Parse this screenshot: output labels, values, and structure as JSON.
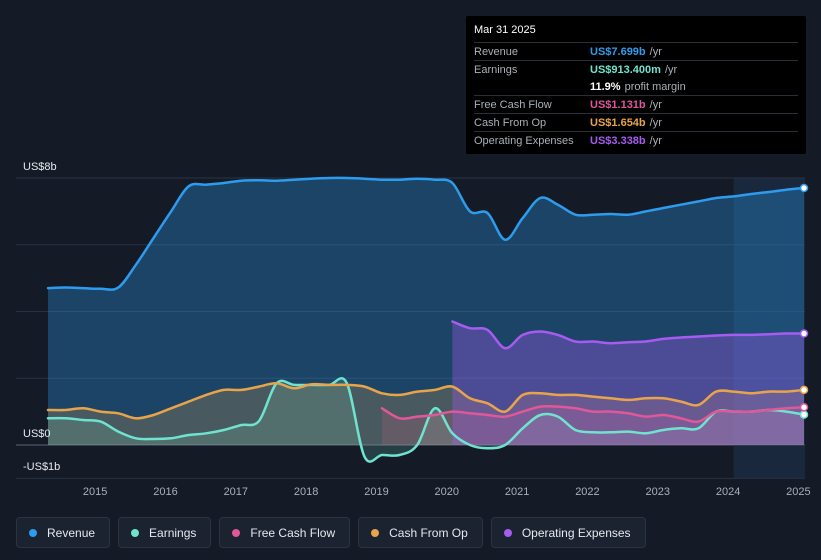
{
  "tooltip": {
    "date": "Mar 31 2025",
    "rows": [
      {
        "label": "Revenue",
        "value": "US$7.699b",
        "unit": "/yr",
        "color": "#2d9cee"
      },
      {
        "label": "Earnings",
        "value": "US$913.400m",
        "unit": "/yr",
        "color": "#6fe3cf"
      },
      {
        "label": "",
        "value": "11.9%",
        "unit": "profit margin",
        "color": "#ffffff"
      },
      {
        "label": "Free Cash Flow",
        "value": "US$1.131b",
        "unit": "/yr",
        "color": "#e0579a"
      },
      {
        "label": "Cash From Op",
        "value": "US$1.654b",
        "unit": "/yr",
        "color": "#e7a44a"
      },
      {
        "label": "Operating Expenses",
        "value": "US$3.338b",
        "unit": "/yr",
        "color": "#a75bf0"
      }
    ]
  },
  "legend": [
    {
      "label": "Revenue",
      "color": "#2d9cee"
    },
    {
      "label": "Earnings",
      "color": "#6fe3cf"
    },
    {
      "label": "Free Cash Flow",
      "color": "#e0579a"
    },
    {
      "label": "Cash From Op",
      "color": "#e7a44a"
    },
    {
      "label": "Operating Expenses",
      "color": "#a75bf0"
    }
  ],
  "chart_data": {
    "type": "area",
    "title": "",
    "xlabel": "",
    "ylabel": "",
    "ylim": [
      -1,
      8
    ],
    "xlim": [
      2014.5,
      2025.25
    ],
    "y_tick_labels": [
      {
        "value": 8,
        "label": "US$8b"
      },
      {
        "value": 0,
        "label": "US$0"
      },
      {
        "value": -1,
        "label": "-US$1b"
      }
    ],
    "x_ticks": [
      {
        "value": 2015,
        "label": "2015"
      },
      {
        "value": 2016,
        "label": "2016"
      },
      {
        "value": 2017,
        "label": "2017"
      },
      {
        "value": 2018,
        "label": "2018"
      },
      {
        "value": 2019,
        "label": "2019"
      },
      {
        "value": 2020,
        "label": "2020"
      },
      {
        "value": 2021,
        "label": "2021"
      },
      {
        "value": 2022,
        "label": "2022"
      },
      {
        "value": 2023,
        "label": "2023"
      },
      {
        "value": 2024,
        "label": "2024"
      },
      {
        "value": 2025,
        "label": "2025"
      }
    ],
    "highlight_from": 2024.25,
    "series": [
      {
        "name": "Revenue",
        "color": "#2d9cee",
        "x": [
          2014.5,
          2014.75,
          2015.0,
          2015.25,
          2015.5,
          2015.75,
          2016.0,
          2016.25,
          2016.5,
          2016.75,
          2017.0,
          2017.25,
          2017.5,
          2017.75,
          2018.0,
          2018.25,
          2018.5,
          2018.75,
          2019.0,
          2019.25,
          2019.5,
          2019.75,
          2020.0,
          2020.25,
          2020.5,
          2020.75,
          2021.0,
          2021.25,
          2021.5,
          2021.75,
          2022.0,
          2022.25,
          2022.5,
          2022.75,
          2023.0,
          2023.25,
          2023.5,
          2023.75,
          2024.0,
          2024.25,
          2024.5,
          2024.75,
          2025.0,
          2025.25
        ],
        "values": [
          4.7,
          4.72,
          4.7,
          4.68,
          4.72,
          5.4,
          6.2,
          7.0,
          7.75,
          7.8,
          7.85,
          7.92,
          7.93,
          7.92,
          7.95,
          7.98,
          8.0,
          8.0,
          7.98,
          7.95,
          7.95,
          7.98,
          7.95,
          7.85,
          7.0,
          6.95,
          6.15,
          6.8,
          7.4,
          7.2,
          6.9,
          6.9,
          6.92,
          6.9,
          7.0,
          7.1,
          7.2,
          7.3,
          7.4,
          7.45,
          7.52,
          7.58,
          7.65,
          7.7
        ]
      },
      {
        "name": "Earnings",
        "color": "#6fe3cf",
        "x": [
          2014.5,
          2014.75,
          2015.0,
          2015.25,
          2015.5,
          2015.75,
          2016.0,
          2016.25,
          2016.5,
          2016.75,
          2017.0,
          2017.25,
          2017.5,
          2017.75,
          2018.0,
          2018.25,
          2018.5,
          2018.75,
          2019.0,
          2019.25,
          2019.5,
          2019.75,
          2020.0,
          2020.25,
          2020.5,
          2020.75,
          2021.0,
          2021.25,
          2021.5,
          2021.75,
          2022.0,
          2022.25,
          2022.5,
          2022.75,
          2023.0,
          2023.25,
          2023.5,
          2023.75,
          2024.0,
          2024.25,
          2024.5,
          2024.75,
          2025.0,
          2025.25
        ],
        "values": [
          0.8,
          0.8,
          0.75,
          0.7,
          0.4,
          0.2,
          0.18,
          0.2,
          0.3,
          0.35,
          0.45,
          0.6,
          0.72,
          1.85,
          1.8,
          1.8,
          1.8,
          1.85,
          -0.35,
          -0.3,
          -0.3,
          0.0,
          1.1,
          0.35,
          0.0,
          -0.1,
          0.0,
          0.5,
          0.9,
          0.85,
          0.45,
          0.38,
          0.38,
          0.4,
          0.35,
          0.45,
          0.5,
          0.5,
          1.0,
          1.0,
          1.0,
          1.05,
          1.0,
          0.91
        ]
      },
      {
        "name": "Free Cash Flow",
        "color": "#e0579a",
        "x": [
          2019.25,
          2019.5,
          2019.75,
          2020.0,
          2020.25,
          2020.5,
          2020.75,
          2021.0,
          2021.25,
          2021.5,
          2021.75,
          2022.0,
          2022.25,
          2022.5,
          2022.75,
          2023.0,
          2023.25,
          2023.5,
          2023.75,
          2024.0,
          2024.25,
          2024.5,
          2024.75,
          2025.0,
          2025.25
        ],
        "values": [
          1.1,
          0.8,
          0.85,
          0.9,
          1.0,
          0.95,
          0.9,
          0.85,
          1.0,
          1.15,
          1.15,
          1.1,
          1.0,
          1.0,
          0.95,
          0.85,
          0.9,
          0.8,
          0.7,
          1.0,
          1.0,
          1.0,
          1.05,
          1.1,
          1.13
        ]
      },
      {
        "name": "Cash From Op",
        "color": "#e7a44a",
        "x": [
          2014.5,
          2014.75,
          2015.0,
          2015.25,
          2015.5,
          2015.75,
          2016.0,
          2016.25,
          2016.5,
          2016.75,
          2017.0,
          2017.25,
          2017.5,
          2017.75,
          2018.0,
          2018.25,
          2018.5,
          2018.75,
          2019.0,
          2019.25,
          2019.5,
          2019.75,
          2020.0,
          2020.25,
          2020.5,
          2020.75,
          2021.0,
          2021.25,
          2021.5,
          2021.75,
          2022.0,
          2022.25,
          2022.5,
          2022.75,
          2023.0,
          2023.25,
          2023.5,
          2023.75,
          2024.0,
          2024.25,
          2024.5,
          2024.75,
          2025.0,
          2025.25
        ],
        "values": [
          1.05,
          1.05,
          1.1,
          1.0,
          0.95,
          0.8,
          0.9,
          1.1,
          1.3,
          1.5,
          1.65,
          1.65,
          1.75,
          1.85,
          1.7,
          1.82,
          1.8,
          1.8,
          1.75,
          1.55,
          1.5,
          1.6,
          1.65,
          1.75,
          1.4,
          1.25,
          1.0,
          1.5,
          1.55,
          1.5,
          1.5,
          1.45,
          1.4,
          1.35,
          1.4,
          1.4,
          1.3,
          1.2,
          1.6,
          1.6,
          1.55,
          1.6,
          1.6,
          1.65
        ]
      },
      {
        "name": "Operating Expenses",
        "color": "#a75bf0",
        "x": [
          2020.25,
          2020.5,
          2020.75,
          2021.0,
          2021.25,
          2021.5,
          2021.75,
          2022.0,
          2022.25,
          2022.5,
          2022.75,
          2023.0,
          2023.25,
          2023.5,
          2023.75,
          2024.0,
          2024.25,
          2024.5,
          2024.75,
          2025.0,
          2025.25
        ],
        "values": [
          3.7,
          3.5,
          3.45,
          2.9,
          3.3,
          3.4,
          3.3,
          3.1,
          3.1,
          3.05,
          3.08,
          3.1,
          3.18,
          3.22,
          3.25,
          3.28,
          3.3,
          3.3,
          3.32,
          3.34,
          3.34
        ]
      }
    ]
  }
}
